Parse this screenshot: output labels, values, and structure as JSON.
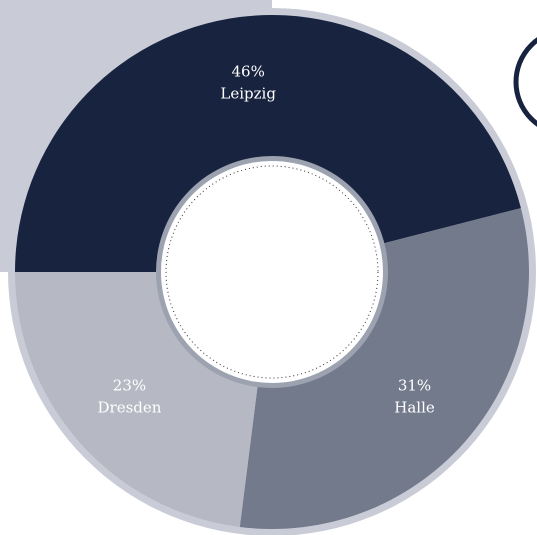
{
  "chart_data": {
    "type": "pie",
    "donut": true,
    "categories": [
      "Leipzig",
      "Halle",
      "Dresden"
    ],
    "values": [
      46,
      31,
      23
    ],
    "value_labels": [
      "46%",
      "31%",
      "23%"
    ],
    "colors": [
      "#17233f",
      "#737a8c",
      "#b6b9c3"
    ]
  }
}
